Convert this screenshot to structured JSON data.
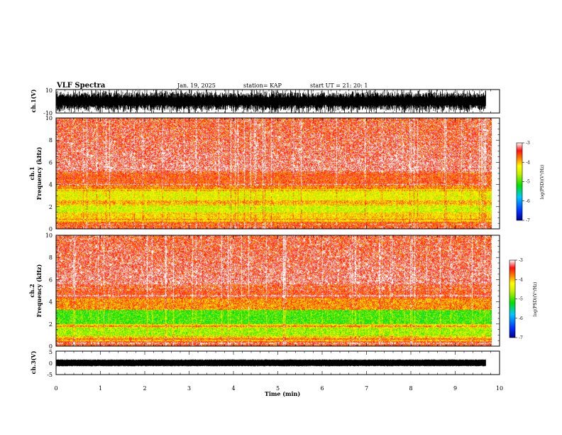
{
  "header": {
    "title": "VLF Spectra",
    "date": "Jan. 19, 2025",
    "station": "station= KAP",
    "start_ut": "start  UT =   21: 20: 1"
  },
  "chart_data": [
    {
      "type": "line",
      "name": "ch1-waveform",
      "ylabel": "ch.1(V)",
      "ylim": [
        -10,
        10
      ],
      "y_ticks": [
        "10",
        "-10"
      ],
      "xlim": [
        0,
        10
      ]
    },
    {
      "type": "heatmap",
      "name": "ch1-spectrogram",
      "ylabel_line1": "ch.1",
      "ylabel_line2": "Frequency (kHz)",
      "ylim": [
        0,
        10
      ],
      "y_ticks": [
        "0",
        "2",
        "4",
        "6",
        "8",
        "10"
      ],
      "xlim": [
        0,
        9.83
      ],
      "colorbar": {
        "ticks": [
          "-3",
          "-4",
          "-5",
          "-6",
          "-7"
        ],
        "label": "log(PSD)(V²/Hz)",
        "range": [
          -7,
          -3
        ]
      }
    },
    {
      "type": "heatmap",
      "name": "ch2-spectrogram",
      "ylabel_line1": "ch.2",
      "ylabel_line2": "Frequency (kHz)",
      "ylim": [
        0,
        10
      ],
      "y_ticks": [
        "0",
        "2",
        "4",
        "6",
        "8",
        "10"
      ],
      "xlim": [
        0,
        9.83
      ],
      "colorbar": {
        "ticks": [
          "-3",
          "-4",
          "-5",
          "-6",
          "-7"
        ],
        "label": "log(PSD)(V²/Hz)",
        "range": [
          -7,
          -3
        ]
      }
    },
    {
      "type": "line",
      "name": "ch3-waveform",
      "ylabel": "ch.3(V)",
      "ylim": [
        -5,
        5
      ],
      "y_ticks": [
        "5",
        "0",
        "-5"
      ],
      "xlim": [
        0,
        10
      ]
    }
  ],
  "x_axis": {
    "label": "Time (min)",
    "ticks": [
      "0",
      "1",
      "2",
      "3",
      "4",
      "5",
      "6",
      "7",
      "8",
      "9",
      "10"
    ]
  }
}
